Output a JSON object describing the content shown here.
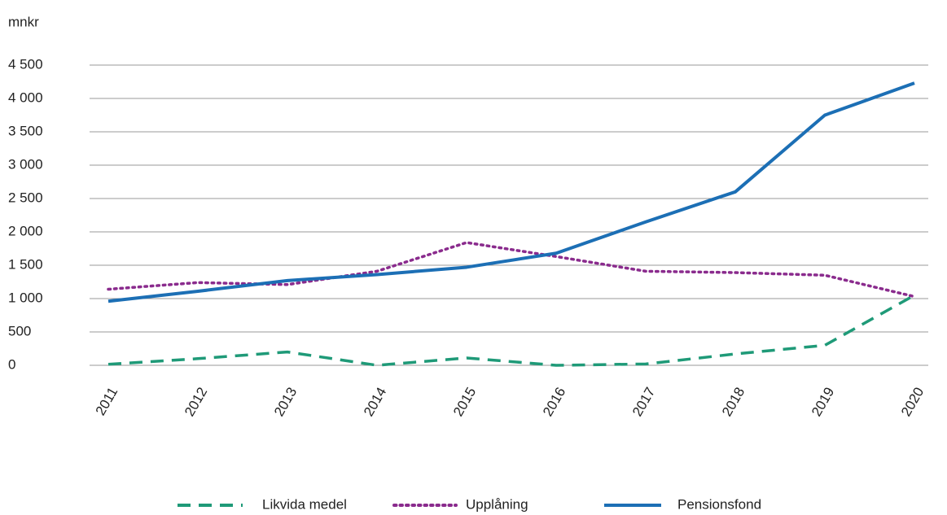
{
  "chart_data": {
    "type": "line",
    "y_label": "mnkr",
    "categories": [
      "2011",
      "2012",
      "2013",
      "2014",
      "2015",
      "2016",
      "2017",
      "2018",
      "2019",
      "2020"
    ],
    "series": [
      {
        "name": "Likvida medel",
        "color": "#1f9a78",
        "dash": "dashed",
        "values": [
          15,
          100,
          200,
          0,
          110,
          0,
          20,
          170,
          300,
          1050
        ]
      },
      {
        "name": "Upplåning",
        "color": "#8a2b8d",
        "dash": "dotted",
        "values": [
          1140,
          1240,
          1210,
          1410,
          1840,
          1630,
          1410,
          1390,
          1350,
          1030
        ]
      },
      {
        "name": "Pensionsfond",
        "color": "#1c6fb5",
        "dash": "solid",
        "values": [
          960,
          1110,
          1270,
          1360,
          1470,
          1680,
          2150,
          2600,
          3750,
          4230
        ]
      }
    ],
    "ylim": [
      0,
      4500
    ],
    "yticks": [
      0,
      500,
      {
        "value": 1000,
        "label": "1 000"
      },
      {
        "value": 1500,
        "label": "1 500"
      },
      {
        "value": 2000,
        "label": "2 000"
      },
      {
        "value": 2500,
        "label": "2 500"
      },
      {
        "value": 3000,
        "label": "3 000"
      },
      {
        "value": 3500,
        "label": "3 500"
      },
      {
        "value": 4000,
        "label": "4 000"
      },
      {
        "value": 4500,
        "label": "4 500"
      }
    ],
    "grid": true
  }
}
